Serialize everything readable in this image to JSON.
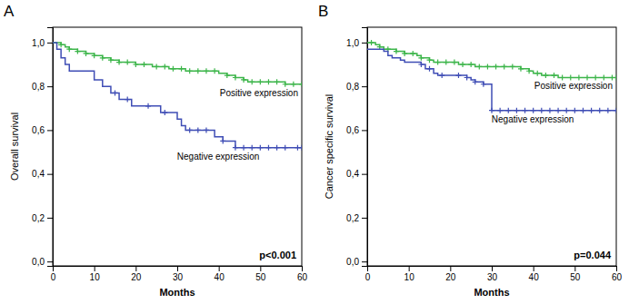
{
  "chart_data": [
    {
      "type": "step",
      "title": "A",
      "xlabel": "Months",
      "ylabel": "Overall survival",
      "annotations": [
        "p<0.001"
      ],
      "xlim": [
        0,
        60
      ],
      "xticks": [
        0,
        10,
        20,
        30,
        40,
        50,
        60
      ],
      "ylim": [
        -0.02,
        1.07
      ],
      "yticks": [
        {
          "value": 0.0,
          "label": "0,0"
        },
        {
          "value": 0.2,
          "label": "0,2"
        },
        {
          "value": 0.4,
          "label": "0,4"
        },
        {
          "value": 0.6,
          "label": "0,6"
        },
        {
          "value": 0.8,
          "label": "0,8"
        },
        {
          "value": 1.0,
          "label": "1,0"
        }
      ],
      "grid": false,
      "series": [
        {
          "name": "Positive expression",
          "color": "#3cb54a",
          "marker": "+",
          "x": [
            0,
            1,
            2,
            3,
            4,
            5,
            6,
            7,
            8,
            9,
            10,
            11,
            12,
            13,
            14,
            15,
            16,
            17,
            18,
            19,
            20,
            21,
            22,
            23,
            24,
            25,
            26,
            27,
            28,
            29,
            30,
            31,
            32,
            33,
            34,
            35,
            36,
            37,
            38,
            39,
            40,
            41,
            42,
            43,
            44,
            45,
            46,
            47,
            48,
            49,
            50,
            51,
            52,
            53,
            54,
            55,
            56,
            57,
            58,
            59,
            60
          ],
          "values": [
            1.0,
            1.0,
            0.99,
            0.98,
            0.97,
            0.97,
            0.96,
            0.96,
            0.95,
            0.95,
            0.94,
            0.94,
            0.93,
            0.93,
            0.92,
            0.92,
            0.91,
            0.91,
            0.91,
            0.91,
            0.9,
            0.9,
            0.9,
            0.9,
            0.89,
            0.89,
            0.89,
            0.89,
            0.88,
            0.88,
            0.88,
            0.88,
            0.87,
            0.87,
            0.87,
            0.87,
            0.87,
            0.87,
            0.87,
            0.87,
            0.86,
            0.86,
            0.85,
            0.85,
            0.84,
            0.84,
            0.83,
            0.82,
            0.82,
            0.82,
            0.82,
            0.82,
            0.82,
            0.82,
            0.82,
            0.82,
            0.81,
            0.81,
            0.81,
            0.81,
            0.81
          ],
          "censor_x": [
            2,
            4,
            6,
            8,
            10,
            12,
            14,
            16,
            18,
            20,
            22,
            25,
            27,
            29,
            31,
            33,
            35,
            37,
            39,
            42,
            44,
            46,
            48,
            50,
            52,
            54,
            56,
            58,
            60
          ],
          "censor_values": [
            0.99,
            0.97,
            0.96,
            0.95,
            0.94,
            0.93,
            0.92,
            0.91,
            0.91,
            0.9,
            0.9,
            0.89,
            0.89,
            0.88,
            0.88,
            0.87,
            0.87,
            0.87,
            0.87,
            0.85,
            0.84,
            0.83,
            0.82,
            0.82,
            0.82,
            0.82,
            0.81,
            0.81,
            0.81
          ]
        },
        {
          "name": "Negative expression",
          "color": "#3f4db5",
          "marker": "+",
          "x": [
            0,
            1,
            2,
            3,
            4,
            5,
            6,
            7,
            8,
            9,
            10,
            11,
            12,
            13,
            14,
            15,
            16,
            17,
            18,
            19,
            20,
            21,
            22,
            23,
            24,
            25,
            26,
            27,
            28,
            29,
            30,
            31,
            32,
            33,
            34,
            35,
            36,
            37,
            38,
            39,
            40,
            41,
            42,
            43,
            44,
            45,
            46,
            47,
            48,
            49,
            50,
            51,
            52,
            53,
            54,
            55,
            56,
            57,
            58,
            59,
            60
          ],
          "values": [
            1.0,
            0.97,
            0.93,
            0.9,
            0.87,
            0.87,
            0.87,
            0.87,
            0.87,
            0.87,
            0.83,
            0.83,
            0.8,
            0.8,
            0.77,
            0.77,
            0.74,
            0.74,
            0.74,
            0.71,
            0.71,
            0.71,
            0.71,
            0.71,
            0.71,
            0.71,
            0.68,
            0.68,
            0.68,
            0.68,
            0.65,
            0.62,
            0.6,
            0.6,
            0.6,
            0.6,
            0.6,
            0.6,
            0.6,
            0.57,
            0.57,
            0.55,
            0.55,
            0.55,
            0.52,
            0.52,
            0.52,
            0.52,
            0.52,
            0.52,
            0.52,
            0.52,
            0.52,
            0.52,
            0.52,
            0.52,
            0.52,
            0.52,
            0.52,
            0.52,
            0.52
          ],
          "censor_x": [
            15,
            18,
            23,
            27,
            33,
            35,
            37,
            41,
            44,
            46,
            48,
            50,
            52,
            54,
            56,
            59,
            60
          ],
          "censor_values": [
            0.77,
            0.74,
            0.71,
            0.68,
            0.6,
            0.6,
            0.6,
            0.55,
            0.52,
            0.52,
            0.52,
            0.52,
            0.52,
            0.52,
            0.52,
            0.52,
            0.52
          ]
        }
      ]
    },
    {
      "type": "step",
      "title": "B",
      "xlabel": "Months",
      "ylabel": "Cancer specific survival",
      "annotations": [
        "p=0.044"
      ],
      "xlim": [
        0,
        60
      ],
      "xticks": [
        0,
        10,
        20,
        30,
        40,
        50,
        60
      ],
      "ylim": [
        -0.02,
        1.07
      ],
      "yticks": [
        {
          "value": 0.0,
          "label": "0,0"
        },
        {
          "value": 0.2,
          "label": "0,2"
        },
        {
          "value": 0.4,
          "label": "0,4"
        },
        {
          "value": 0.6,
          "label": "0,6"
        },
        {
          "value": 0.8,
          "label": "0,8"
        },
        {
          "value": 1.0,
          "label": "1,0"
        }
      ],
      "grid": false,
      "series": [
        {
          "name": "Positive expression",
          "color": "#3cb54a",
          "marker": "+",
          "x": [
            0,
            1,
            2,
            3,
            4,
            5,
            6,
            7,
            8,
            9,
            10,
            11,
            12,
            13,
            14,
            15,
            16,
            17,
            18,
            19,
            20,
            21,
            22,
            23,
            24,
            25,
            26,
            27,
            28,
            29,
            30,
            31,
            32,
            33,
            34,
            35,
            36,
            37,
            38,
            39,
            40,
            41,
            42,
            43,
            44,
            45,
            46,
            47,
            48,
            49,
            50,
            51,
            52,
            53,
            54,
            55,
            56,
            57,
            58,
            59,
            60
          ],
          "values": [
            1.0,
            1.0,
            0.99,
            0.98,
            0.97,
            0.97,
            0.97,
            0.96,
            0.96,
            0.95,
            0.95,
            0.95,
            0.94,
            0.93,
            0.93,
            0.92,
            0.91,
            0.91,
            0.91,
            0.91,
            0.91,
            0.91,
            0.9,
            0.9,
            0.9,
            0.9,
            0.89,
            0.89,
            0.89,
            0.89,
            0.89,
            0.89,
            0.89,
            0.89,
            0.89,
            0.89,
            0.89,
            0.88,
            0.88,
            0.87,
            0.86,
            0.86,
            0.85,
            0.85,
            0.85,
            0.85,
            0.84,
            0.84,
            0.84,
            0.84,
            0.84,
            0.84,
            0.84,
            0.84,
            0.84,
            0.84,
            0.84,
            0.84,
            0.84,
            0.84,
            0.84
          ],
          "censor_x": [
            1,
            3,
            5,
            7,
            9,
            11,
            13,
            15,
            17,
            19,
            21,
            23,
            25,
            27,
            29,
            31,
            33,
            35,
            37,
            39,
            41,
            43,
            45,
            47,
            49,
            51,
            53,
            55,
            57,
            59,
            60
          ],
          "censor_values": [
            1.0,
            0.98,
            0.97,
            0.96,
            0.95,
            0.95,
            0.93,
            0.92,
            0.91,
            0.91,
            0.91,
            0.9,
            0.9,
            0.89,
            0.89,
            0.89,
            0.89,
            0.89,
            0.88,
            0.87,
            0.86,
            0.85,
            0.85,
            0.84,
            0.84,
            0.84,
            0.84,
            0.84,
            0.84,
            0.84,
            0.84
          ]
        },
        {
          "name": "Negative expression",
          "color": "#3f4db5",
          "marker": "+",
          "x": [
            0,
            1,
            2,
            3,
            4,
            5,
            6,
            7,
            8,
            9,
            10,
            11,
            12,
            13,
            14,
            15,
            16,
            17,
            18,
            19,
            20,
            21,
            22,
            23,
            24,
            25,
            26,
            27,
            28,
            29,
            30,
            31,
            32,
            33,
            34,
            35,
            36,
            37,
            38,
            39,
            40,
            41,
            42,
            43,
            44,
            45,
            46,
            47,
            48,
            49,
            50,
            51,
            52,
            53,
            54,
            55,
            56,
            57,
            58,
            59,
            60
          ],
          "values": [
            0.97,
            0.97,
            0.97,
            0.97,
            0.96,
            0.94,
            0.93,
            0.93,
            0.92,
            0.91,
            0.91,
            0.91,
            0.91,
            0.9,
            0.88,
            0.88,
            0.86,
            0.85,
            0.85,
            0.85,
            0.85,
            0.85,
            0.85,
            0.85,
            0.84,
            0.83,
            0.82,
            0.82,
            0.81,
            0.81,
            0.69,
            0.69,
            0.69,
            0.69,
            0.69,
            0.69,
            0.69,
            0.69,
            0.69,
            0.69,
            0.69,
            0.69,
            0.69,
            0.69,
            0.69,
            0.69,
            0.69,
            0.69,
            0.69,
            0.69,
            0.69,
            0.69,
            0.69,
            0.69,
            0.69,
            0.69,
            0.69,
            0.69,
            0.69,
            0.69,
            0.69
          ],
          "censor_x": [
            13,
            15,
            18,
            22,
            24,
            26,
            28,
            30,
            32,
            34,
            36,
            38,
            40,
            42,
            44,
            46,
            48,
            50,
            52,
            54,
            56,
            58,
            60
          ],
          "censor_values": [
            0.9,
            0.88,
            0.85,
            0.85,
            0.84,
            0.82,
            0.81,
            0.69,
            0.69,
            0.69,
            0.69,
            0.69,
            0.69,
            0.69,
            0.69,
            0.69,
            0.69,
            0.69,
            0.69,
            0.69,
            0.69,
            0.69,
            0.69
          ]
        }
      ]
    }
  ]
}
